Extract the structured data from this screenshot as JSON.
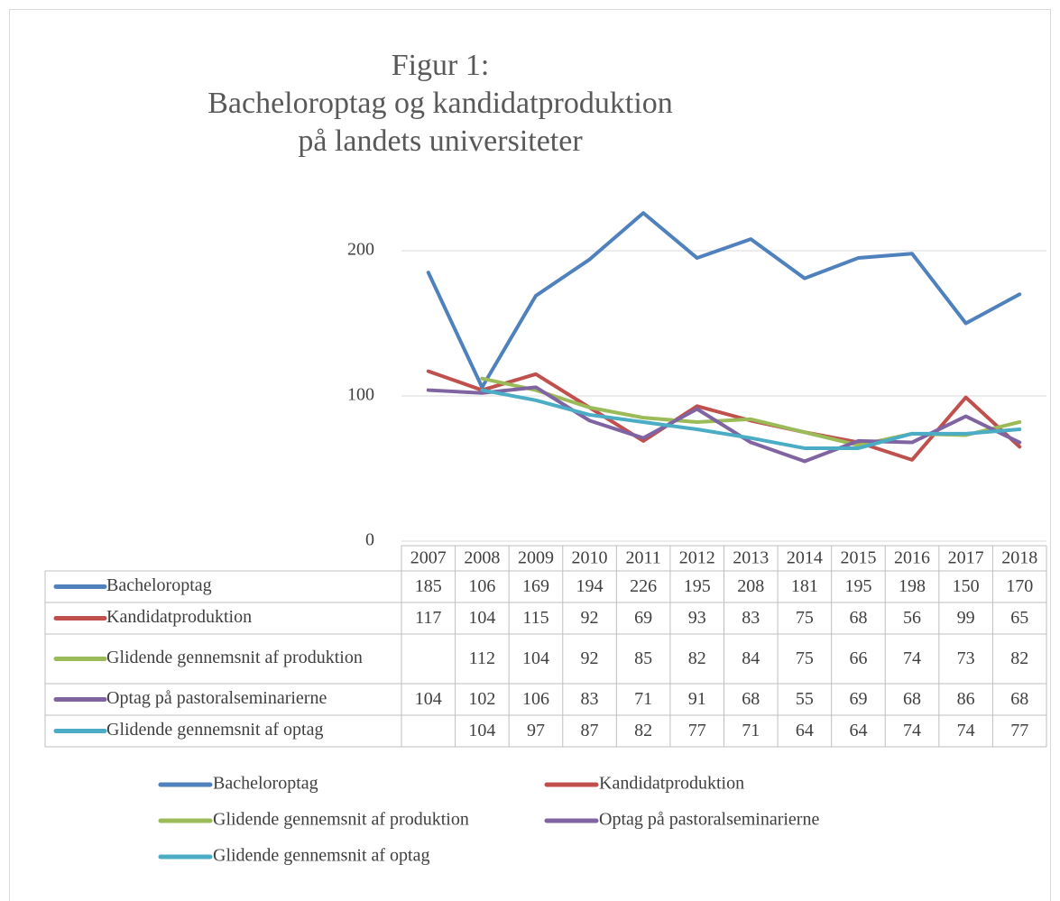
{
  "chart_data": {
    "type": "line",
    "title": [
      "Figur 1:",
      "Bacheloroptag og kandidatproduktion",
      "på landets universiteter"
    ],
    "categories": [
      "2007",
      "2008",
      "2009",
      "2010",
      "2011",
      "2012",
      "2013",
      "2014",
      "2015",
      "2016",
      "2017",
      "2018"
    ],
    "series": [
      {
        "name": "Bacheloroptag",
        "color": "#4f81bd",
        "values": [
          185,
          106,
          169,
          194,
          226,
          195,
          208,
          181,
          195,
          198,
          150,
          170
        ]
      },
      {
        "name": "Kandidatproduktion",
        "color": "#c0504d",
        "values": [
          117,
          104,
          115,
          92,
          69,
          93,
          83,
          75,
          68,
          56,
          99,
          65
        ]
      },
      {
        "name": "Glidende gennemsnit af produktion",
        "color": "#9bbb59",
        "values": [
          null,
          112,
          104,
          92,
          85,
          82,
          84,
          75,
          66,
          74,
          73,
          82
        ]
      },
      {
        "name": "Optag på pastoralseminarierne",
        "color": "#8064a2",
        "values": [
          104,
          102,
          106,
          83,
          71,
          91,
          68,
          55,
          69,
          68,
          86,
          68
        ]
      },
      {
        "name": "Glidende gennemsnit af optag",
        "color": "#4bacc6",
        "values": [
          null,
          104,
          97,
          87,
          82,
          77,
          71,
          64,
          64,
          74,
          74,
          77
        ]
      }
    ],
    "ylim": [
      0,
      250
    ],
    "yticks": [
      0,
      100,
      200
    ],
    "grid": true,
    "legend": "bottom",
    "data_table": true
  }
}
